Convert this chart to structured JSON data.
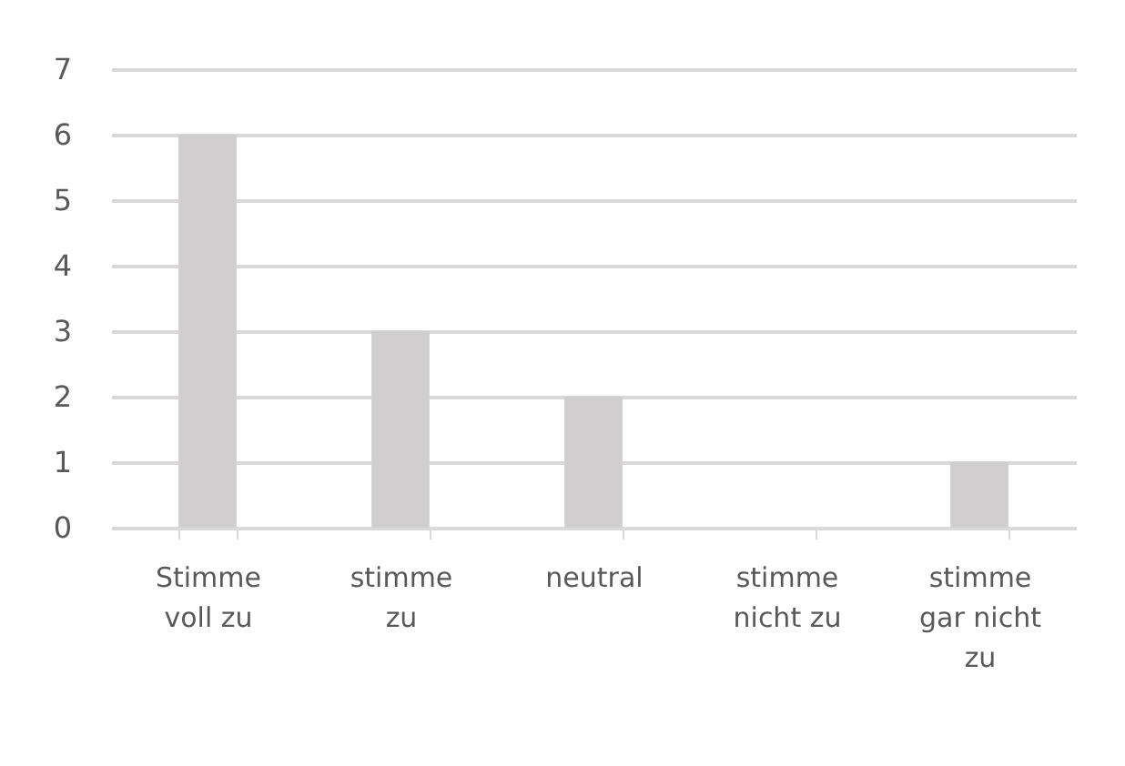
{
  "chart_data": {
    "type": "bar",
    "categories": [
      "Stimme\nvoll zu",
      "stimme\nzu",
      "neutral",
      "stimme\nnicht zu",
      "stimme\ngar nicht\nzu"
    ],
    "values": [
      6,
      3,
      2,
      0,
      1
    ],
    "color": "#d0cece",
    "ylim": [
      0,
      7
    ],
    "yticks": [
      0,
      1,
      2,
      3,
      4,
      5,
      6,
      7
    ],
    "grid": "y"
  }
}
